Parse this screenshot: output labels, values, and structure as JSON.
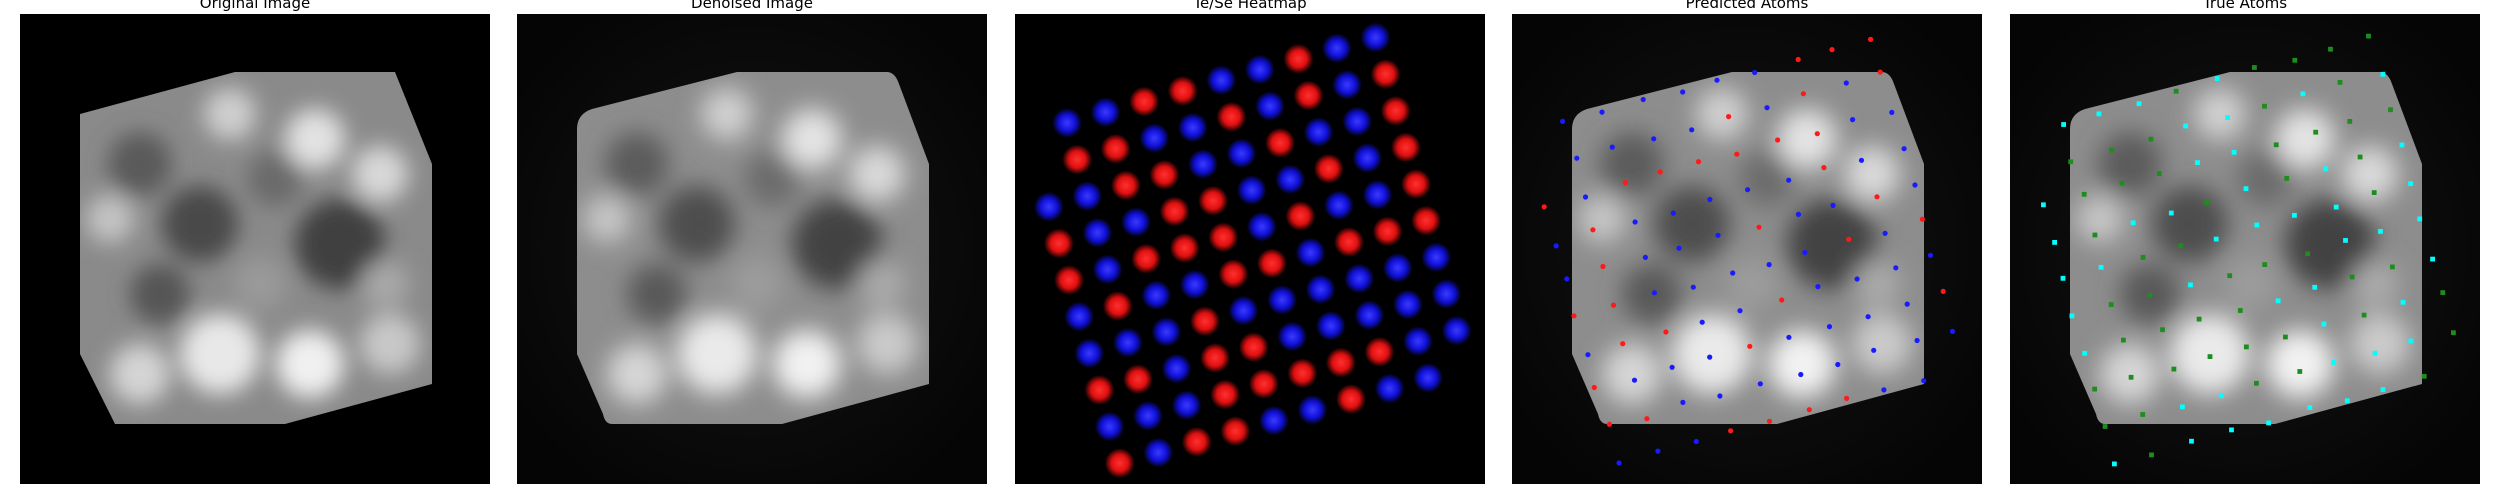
{
  "panels": [
    {
      "title": "Original Image"
    },
    {
      "title": "Denoised Image"
    },
    {
      "title": "Te/Se Heatmap"
    },
    {
      "title": "Predicted Atoms"
    },
    {
      "title": "True Atoms"
    }
  ],
  "colors": {
    "te": "#ff1a1a",
    "se": "#1a1aff",
    "true_te": "#00ffff",
    "true_se": "#1e8c1e",
    "background": "#000000"
  }
}
